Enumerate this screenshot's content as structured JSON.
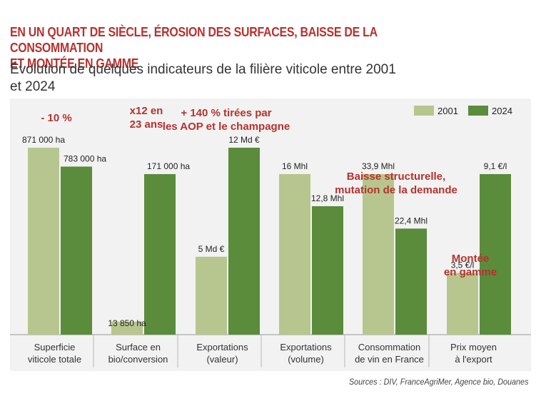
{
  "header": {
    "title_line1": "EN UN QUART DE SIÈCLE, ÉROSION DES SURFACES, BAISSE DE LA CONSOMMATION",
    "title_line2": "ET MONTÉE EN GAMME",
    "subtitle_line1": "Évolution de quelques indicateurs de la filière viticole entre 2001",
    "subtitle_line2": "et 2024"
  },
  "chart_data": {
    "type": "bar",
    "series": [
      {
        "name": "2001",
        "color": "#b7c68e"
      },
      {
        "name": "2024",
        "color": "#5a8c3c"
      }
    ],
    "legend_position": "top-right",
    "grid": false,
    "groups": [
      {
        "category_lines": [
          "Superficie",
          "viticole totale"
        ],
        "values": [
          871000,
          783000
        ],
        "labels": [
          "871 000 ha",
          "783 000 ha"
        ],
        "annotation_lines": [
          "- 10 %"
        ]
      },
      {
        "category_lines": [
          "Surface en",
          "bio/conversion"
        ],
        "values": [
          13850,
          171000
        ],
        "labels": [
          "13 850 ha",
          "171 000 ha"
        ],
        "annotation_lines": [
          "x12 en",
          "23 ans"
        ]
      },
      {
        "category_lines": [
          "Exportations",
          "(valeur)"
        ],
        "values": [
          5,
          12
        ],
        "labels": [
          "5 Md €",
          "12 Md €"
        ],
        "annotation_lines": [
          "+ 140 % tirées par",
          "les AOP et le champagne"
        ]
      },
      {
        "category_lines": [
          "Exportations",
          "(volume)"
        ],
        "values": [
          16,
          12.8
        ],
        "labels": [
          "16 Mhl",
          "12,8 Mhl"
        ],
        "annotation_lines": []
      },
      {
        "category_lines": [
          "Consommation",
          "de vin en France"
        ],
        "values": [
          33.9,
          22.4
        ],
        "labels": [
          "33,9 Mhl",
          "22,4 Mhl"
        ],
        "annotation_lines": [
          "Baisse structurelle,",
          "mutation de la demande"
        ]
      },
      {
        "category_lines": [
          "Prix moyen",
          "à l'export"
        ],
        "values": [
          3.5,
          9.1
        ],
        "labels": [
          "3,5 €/l",
          "9,1 €/l"
        ],
        "annotation_lines": [
          "Montée",
          "en gamme"
        ]
      }
    ]
  },
  "footer": {
    "source": "Sources : DIV, FranceAgriMer, Agence bio, Douanes"
  }
}
